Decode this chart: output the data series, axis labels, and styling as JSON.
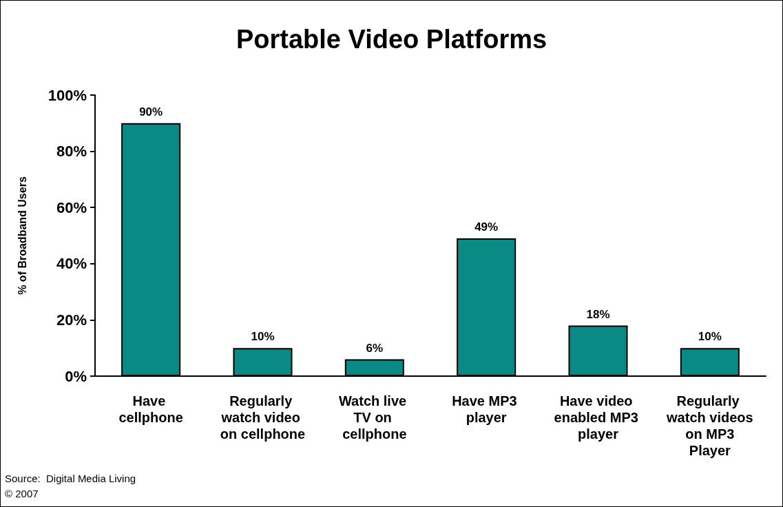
{
  "chart_data": {
    "type": "bar",
    "title": "Portable Video Platforms",
    "ylabel": "% of Broadband Users",
    "categories": [
      "Have cellphone",
      "Regularly watch video on cellphone",
      "Watch live TV on cellphone",
      "Have MP3 player",
      "Have video enabled MP3 player",
      "Regularly watch videos on MP3 Player"
    ],
    "values": [
      90,
      10,
      6,
      49,
      18,
      10
    ],
    "value_labels": [
      "90%",
      "10%",
      "6%",
      "49%",
      "18%",
      "10%"
    ],
    "color": "#0a8a84",
    "ylim": [
      0,
      100
    ],
    "yticks": [
      {
        "value": 0,
        "label": "0%"
      },
      {
        "value": 20,
        "label": "20%"
      },
      {
        "value": 40,
        "label": "40%"
      },
      {
        "value": 60,
        "label": "60%"
      },
      {
        "value": 80,
        "label": "80%"
      },
      {
        "value": 100,
        "label": "100%"
      }
    ],
    "grid": false,
    "annotations": [
      "Source:  Digital Media Living",
      "© 2007"
    ]
  }
}
